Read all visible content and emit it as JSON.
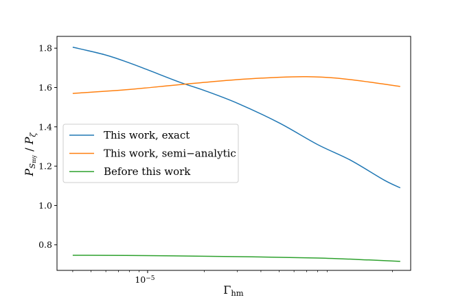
{
  "chart_data": {
    "type": "line",
    "x_scale": "log",
    "xlim": [
      3.3e-06,
      0.00025
    ],
    "ylim": [
      0.67,
      1.86
    ],
    "xlabel": "Γhm",
    "ylabel": "PSmy / Pζ",
    "xlabel_main": "Γ",
    "xlabel_sub": "hm",
    "ylabel_parts": {
      "p1": "P",
      "s1": "S",
      "ss1": "my",
      "slash": " / ",
      "p2": "P",
      "s2": "ζ"
    },
    "x_ticks": [
      {
        "value": 1e-05,
        "label_base": "10",
        "label_exp": "−5"
      }
    ],
    "y_ticks": [
      0.8,
      1.0,
      1.2,
      1.4,
      1.6,
      1.8
    ],
    "y_tick_labels": [
      "0.8",
      "1.0",
      "1.2",
      "1.4",
      "1.6",
      "1.8"
    ],
    "grid": false,
    "legend_position": "center-left",
    "series": [
      {
        "name": "This work, exact",
        "color": "#1f77b4",
        "x": [
          4e-06,
          6e-06,
          8e-06,
          1e-05,
          1.5e-05,
          2e-05,
          3e-05,
          5e-05,
          8e-05,
          0.00012,
          0.00018,
          0.00022
        ],
        "y": [
          1.805,
          1.765,
          1.725,
          1.69,
          1.625,
          1.585,
          1.52,
          1.42,
          1.31,
          1.23,
          1.13,
          1.09
        ]
      },
      {
        "name": "This work, semi−analytic",
        "color": "#ff7f0e",
        "x": [
          4e-06,
          8e-06,
          1.5e-05,
          3e-05,
          5e-05,
          7e-05,
          0.0001,
          0.00015,
          0.00022
        ],
        "y": [
          1.57,
          1.59,
          1.615,
          1.64,
          1.652,
          1.655,
          1.648,
          1.628,
          1.605
        ]
      },
      {
        "name": "Before this work",
        "color": "#2ca02c",
        "x": [
          4e-06,
          1e-05,
          3e-05,
          8e-05,
          0.00015,
          0.00022
        ],
        "y": [
          0.747,
          0.745,
          0.74,
          0.733,
          0.723,
          0.716
        ]
      }
    ]
  }
}
